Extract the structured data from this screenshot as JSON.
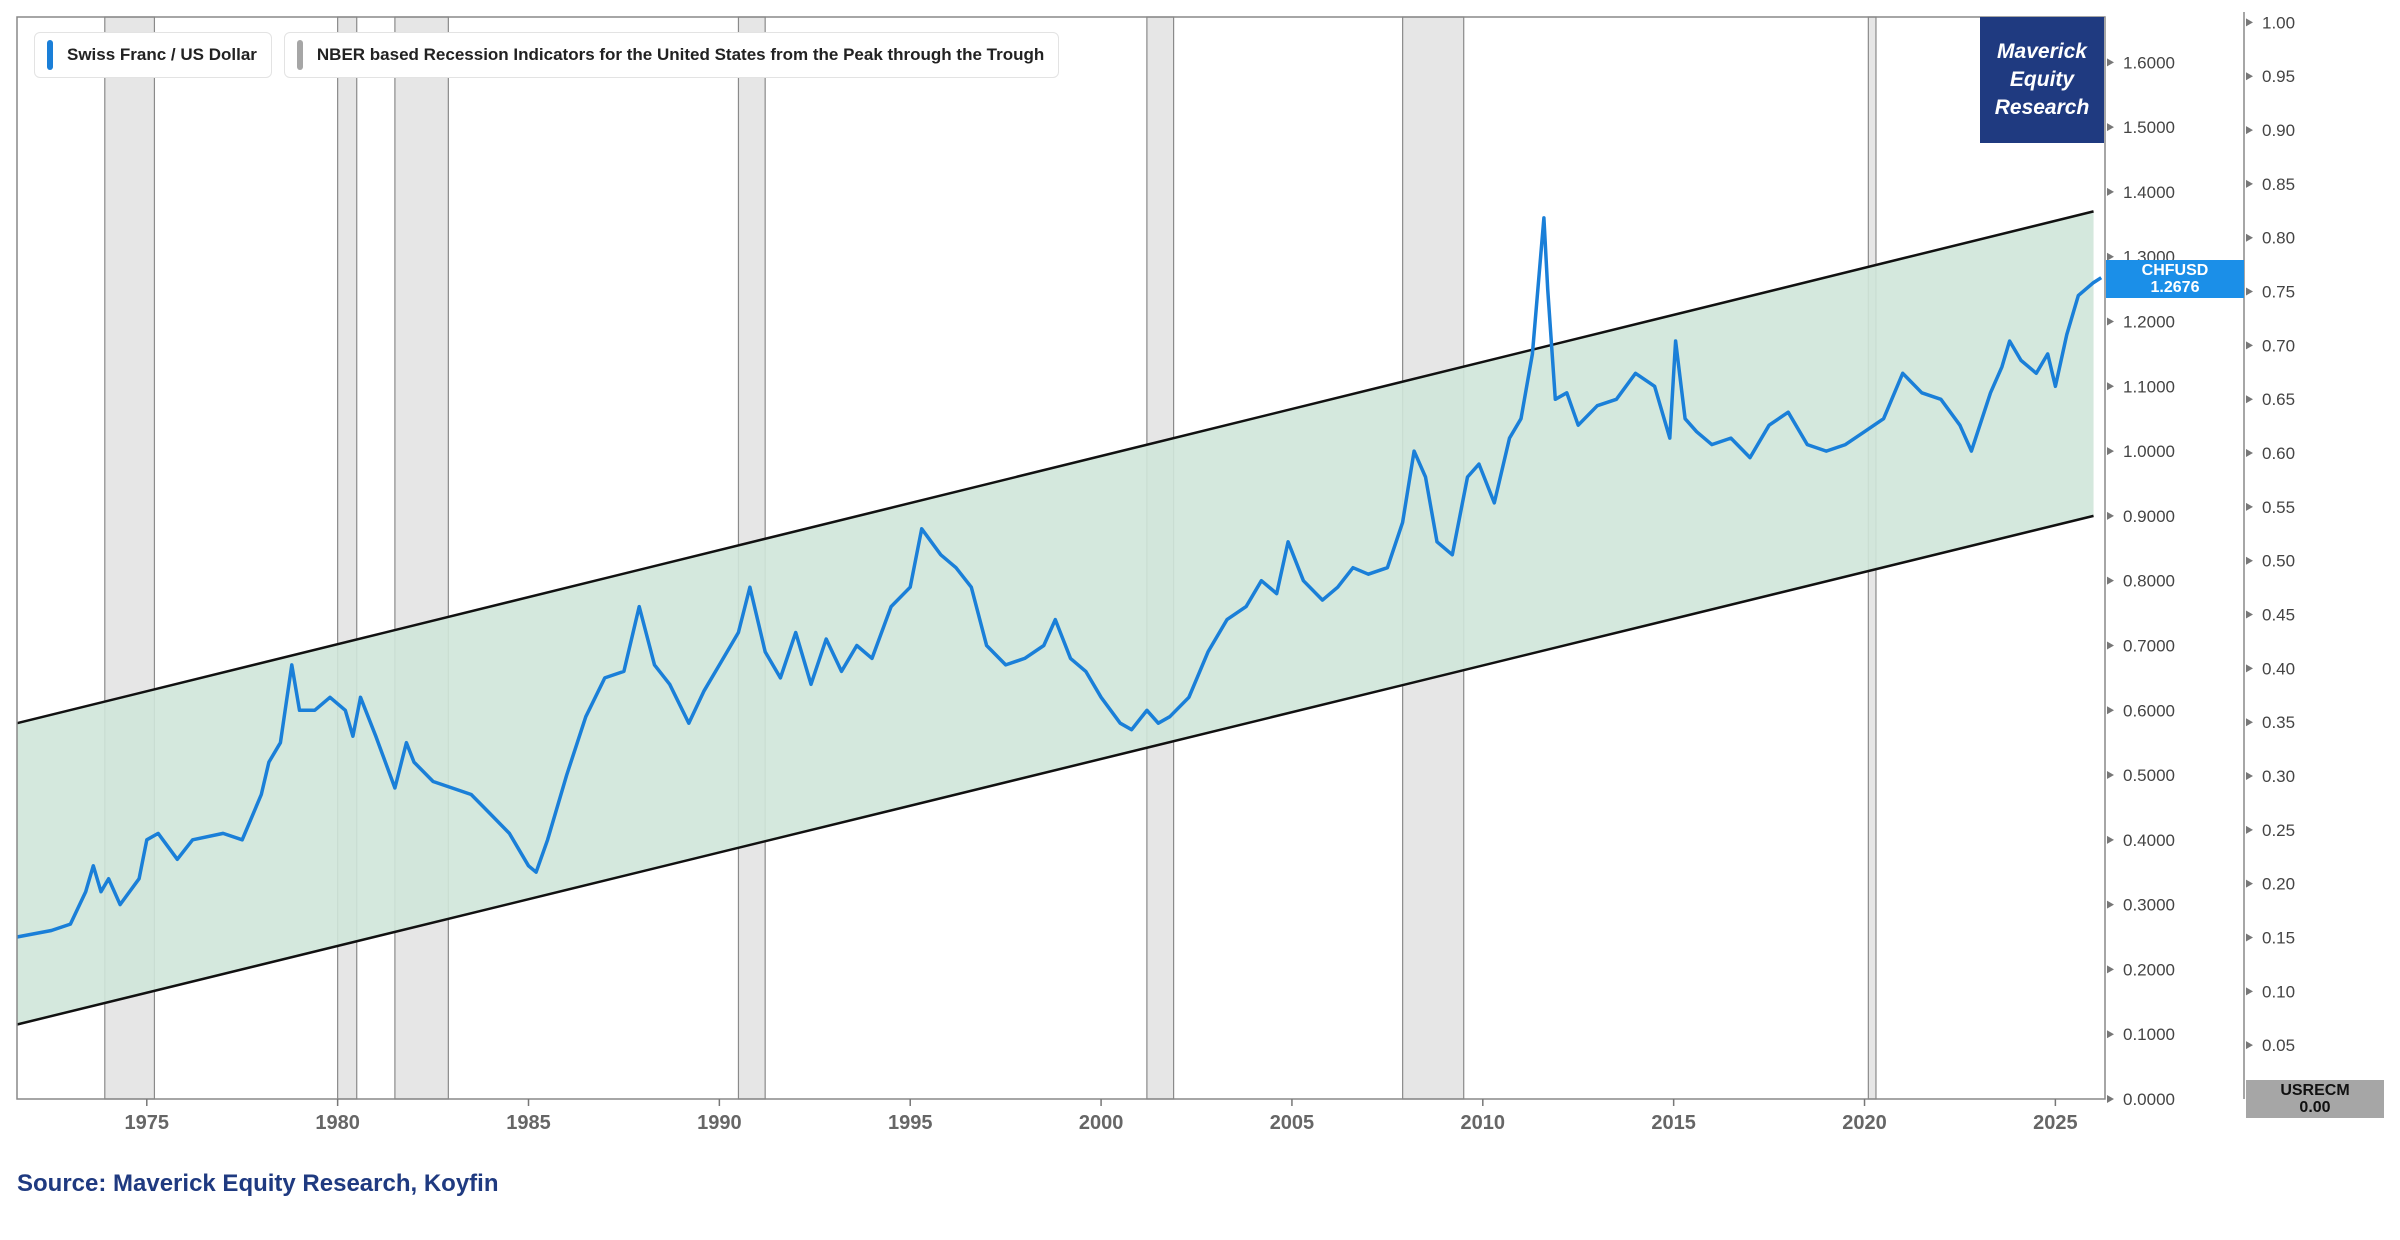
{
  "legend": {
    "series_label": "Swiss Franc / US Dollar",
    "recession_label": "NBER based Recession Indicators for the United States from the Peak through the Trough"
  },
  "brand": {
    "line1": "Maverick",
    "line2": "Equity",
    "line3": "Research"
  },
  "source": "Source: Maverick Equity Research, Koyfin",
  "last_value": {
    "ticker": "CHFUSD",
    "value": "1.2676"
  },
  "recession_last": {
    "ticker": "USRECM",
    "value": "0.00"
  },
  "colors": {
    "line": "#1a7fd8",
    "channel_fill": "#cfe5d9",
    "recession_fill": "#d6d6d6",
    "brand_bg": "#1f3a80",
    "source_text": "#1f3a80",
    "last_box": "#1b8fe8",
    "recession_box": "#a6a6a6"
  },
  "chart_data": {
    "type": "line",
    "title": "",
    "xlabel": "",
    "ylabel": "",
    "x_range": [
      1971.6,
      2026.3
    ],
    "x_ticks": [
      "1975",
      "1980",
      "1985",
      "1990",
      "1995",
      "2000",
      "2005",
      "2010",
      "2015",
      "2020",
      "2025"
    ],
    "y_range": [
      0,
      1.67
    ],
    "y_ticks": [
      "0.0000",
      "0.1000",
      "0.2000",
      "0.3000",
      "0.4000",
      "0.5000",
      "0.6000",
      "0.7000",
      "0.8000",
      "0.9000",
      "1.0000",
      "1.1000",
      "1.2000",
      "1.3000",
      "1.4000",
      "1.5000",
      "1.6000"
    ],
    "y2_range": [
      0,
      1.0
    ],
    "y2_ticks": [
      "0.00",
      "0.05",
      "0.10",
      "0.15",
      "0.20",
      "0.25",
      "0.30",
      "0.35",
      "0.40",
      "0.45",
      "0.50",
      "0.55",
      "0.60",
      "0.65",
      "0.70",
      "0.75",
      "0.80",
      "0.85",
      "0.90",
      "0.95",
      "1.00"
    ],
    "grid": false,
    "legend_position": "top-left",
    "series": [
      {
        "name": "Swiss Franc / US Dollar",
        "points": [
          [
            1971.6,
            0.25
          ],
          [
            1972.5,
            0.26
          ],
          [
            1973.0,
            0.27
          ],
          [
            1973.4,
            0.32
          ],
          [
            1973.6,
            0.36
          ],
          [
            1973.8,
            0.32
          ],
          [
            1974.0,
            0.34
          ],
          [
            1974.3,
            0.3
          ],
          [
            1974.8,
            0.34
          ],
          [
            1975.0,
            0.4
          ],
          [
            1975.3,
            0.41
          ],
          [
            1975.8,
            0.37
          ],
          [
            1976.2,
            0.4
          ],
          [
            1977.0,
            0.41
          ],
          [
            1977.5,
            0.4
          ],
          [
            1978.0,
            0.47
          ],
          [
            1978.2,
            0.52
          ],
          [
            1978.5,
            0.55
          ],
          [
            1978.7,
            0.63
          ],
          [
            1978.8,
            0.67
          ],
          [
            1979.0,
            0.6
          ],
          [
            1979.4,
            0.6
          ],
          [
            1979.8,
            0.62
          ],
          [
            1980.2,
            0.6
          ],
          [
            1980.4,
            0.56
          ],
          [
            1980.6,
            0.62
          ],
          [
            1981.0,
            0.56
          ],
          [
            1981.5,
            0.48
          ],
          [
            1981.8,
            0.55
          ],
          [
            1982.0,
            0.52
          ],
          [
            1982.5,
            0.49
          ],
          [
            1983.0,
            0.48
          ],
          [
            1983.5,
            0.47
          ],
          [
            1984.0,
            0.44
          ],
          [
            1984.5,
            0.41
          ],
          [
            1985.0,
            0.36
          ],
          [
            1985.2,
            0.35
          ],
          [
            1985.5,
            0.4
          ],
          [
            1986.0,
            0.5
          ],
          [
            1986.5,
            0.59
          ],
          [
            1987.0,
            0.65
          ],
          [
            1987.5,
            0.66
          ],
          [
            1987.9,
            0.76
          ],
          [
            1988.3,
            0.67
          ],
          [
            1988.7,
            0.64
          ],
          [
            1989.2,
            0.58
          ],
          [
            1989.6,
            0.63
          ],
          [
            1990.0,
            0.67
          ],
          [
            1990.5,
            0.72
          ],
          [
            1990.8,
            0.79
          ],
          [
            1991.2,
            0.69
          ],
          [
            1991.6,
            0.65
          ],
          [
            1992.0,
            0.72
          ],
          [
            1992.4,
            0.64
          ],
          [
            1992.8,
            0.71
          ],
          [
            1993.2,
            0.66
          ],
          [
            1993.6,
            0.7
          ],
          [
            1994.0,
            0.68
          ],
          [
            1994.5,
            0.76
          ],
          [
            1995.0,
            0.79
          ],
          [
            1995.3,
            0.88
          ],
          [
            1995.8,
            0.84
          ],
          [
            1996.2,
            0.82
          ],
          [
            1996.6,
            0.79
          ],
          [
            1997.0,
            0.7
          ],
          [
            1997.5,
            0.67
          ],
          [
            1998.0,
            0.68
          ],
          [
            1998.5,
            0.7
          ],
          [
            1998.8,
            0.74
          ],
          [
            1999.2,
            0.68
          ],
          [
            1999.6,
            0.66
          ],
          [
            2000.0,
            0.62
          ],
          [
            2000.5,
            0.58
          ],
          [
            2000.8,
            0.57
          ],
          [
            2001.2,
            0.6
          ],
          [
            2001.5,
            0.58
          ],
          [
            2001.8,
            0.59
          ],
          [
            2002.3,
            0.62
          ],
          [
            2002.8,
            0.69
          ],
          [
            2003.3,
            0.74
          ],
          [
            2003.8,
            0.76
          ],
          [
            2004.2,
            0.8
          ],
          [
            2004.6,
            0.78
          ],
          [
            2004.9,
            0.86
          ],
          [
            2005.3,
            0.8
          ],
          [
            2005.8,
            0.77
          ],
          [
            2006.2,
            0.79
          ],
          [
            2006.6,
            0.82
          ],
          [
            2007.0,
            0.81
          ],
          [
            2007.5,
            0.82
          ],
          [
            2007.9,
            0.89
          ],
          [
            2008.2,
            1.0
          ],
          [
            2008.5,
            0.96
          ],
          [
            2008.8,
            0.86
          ],
          [
            2009.2,
            0.84
          ],
          [
            2009.6,
            0.96
          ],
          [
            2009.9,
            0.98
          ],
          [
            2010.3,
            0.92
          ],
          [
            2010.7,
            1.02
          ],
          [
            2011.0,
            1.05
          ],
          [
            2011.3,
            1.15
          ],
          [
            2011.6,
            1.36
          ],
          [
            2011.7,
            1.25
          ],
          [
            2011.9,
            1.08
          ],
          [
            2012.2,
            1.09
          ],
          [
            2012.5,
            1.04
          ],
          [
            2013.0,
            1.07
          ],
          [
            2013.5,
            1.08
          ],
          [
            2014.0,
            1.12
          ],
          [
            2014.5,
            1.1
          ],
          [
            2014.9,
            1.02
          ],
          [
            2015.05,
            1.17
          ],
          [
            2015.3,
            1.05
          ],
          [
            2015.6,
            1.03
          ],
          [
            2016.0,
            1.01
          ],
          [
            2016.5,
            1.02
          ],
          [
            2017.0,
            0.99
          ],
          [
            2017.5,
            1.04
          ],
          [
            2018.0,
            1.06
          ],
          [
            2018.5,
            1.01
          ],
          [
            2019.0,
            1.0
          ],
          [
            2019.5,
            1.01
          ],
          [
            2020.0,
            1.03
          ],
          [
            2020.5,
            1.05
          ],
          [
            2021.0,
            1.12
          ],
          [
            2021.5,
            1.09
          ],
          [
            2022.0,
            1.08
          ],
          [
            2022.5,
            1.04
          ],
          [
            2022.8,
            1.0
          ],
          [
            2023.3,
            1.09
          ],
          [
            2023.6,
            1.13
          ],
          [
            2023.8,
            1.17
          ],
          [
            2024.1,
            1.14
          ],
          [
            2024.5,
            1.12
          ],
          [
            2024.8,
            1.15
          ],
          [
            2025.0,
            1.1
          ],
          [
            2025.3,
            1.18
          ],
          [
            2025.6,
            1.24
          ],
          [
            2026.0,
            1.26
          ],
          [
            2026.2,
            1.2676
          ]
        ]
      },
      {
        "name": "NBER based Recession Indicators for the United States from the Peak through the Trough",
        "periods": [
          [
            1973.9,
            1975.2
          ],
          [
            1980.0,
            1980.5
          ],
          [
            1981.5,
            1982.9
          ],
          [
            1990.5,
            1991.2
          ],
          [
            2001.2,
            2001.9
          ],
          [
            2007.9,
            2009.5
          ],
          [
            2020.1,
            2020.3
          ]
        ]
      }
    ],
    "channel": {
      "lower": [
        [
          1971.6,
          0.115
        ],
        [
          2026.0,
          0.9
        ]
      ],
      "upper": [
        [
          1971.6,
          0.58
        ],
        [
          2026.0,
          1.37
        ]
      ]
    }
  }
}
